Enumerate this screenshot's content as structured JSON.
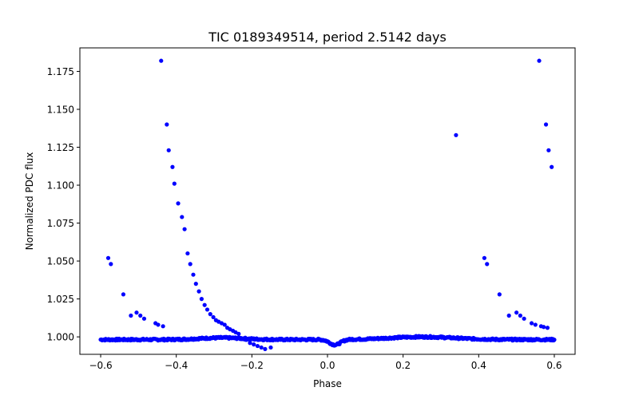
{
  "chart_data": {
    "type": "scatter",
    "title": "TIC 0189349514, period 2.5142 days",
    "xlabel": "Phase",
    "ylabel": "Normalized PDC flux",
    "xlim": [
      -0.655,
      0.655
    ],
    "ylim": [
      0.9885,
      1.1905
    ],
    "xticks": [
      -0.6,
      -0.4,
      -0.2,
      0.0,
      0.2,
      0.4,
      0.6
    ],
    "xtick_labels": [
      "−0.6",
      "−0.4",
      "−0.2",
      "0.0",
      "0.2",
      "0.4",
      "0.6"
    ],
    "yticks": [
      1.0,
      1.025,
      1.05,
      1.075,
      1.1,
      1.125,
      1.15,
      1.175
    ],
    "ytick_labels": [
      "1.000",
      "1.025",
      "1.050",
      "1.075",
      "1.100",
      "1.125",
      "1.150",
      "1.175"
    ],
    "grid": false,
    "marker_color": "#0000ff",
    "series": [
      {
        "points": [
          [
            -0.58,
            1.052
          ],
          [
            -0.573,
            1.048
          ],
          [
            -0.54,
            1.028
          ],
          [
            -0.52,
            1.014
          ],
          [
            -0.505,
            1.016
          ],
          [
            -0.495,
            1.014
          ],
          [
            -0.485,
            1.012
          ],
          [
            -0.455,
            1.009
          ],
          [
            -0.448,
            1.008
          ],
          [
            -0.44,
            1.182
          ],
          [
            -0.435,
            1.007
          ],
          [
            -0.425,
            1.14
          ],
          [
            -0.42,
            1.123
          ],
          [
            -0.41,
            1.112
          ],
          [
            -0.405,
            1.101
          ],
          [
            -0.395,
            1.088
          ],
          [
            -0.385,
            1.079
          ],
          [
            -0.378,
            1.071
          ],
          [
            -0.37,
            1.055
          ],
          [
            -0.363,
            1.048
          ],
          [
            -0.355,
            1.041
          ],
          [
            -0.348,
            1.035
          ],
          [
            -0.34,
            1.03
          ],
          [
            -0.333,
            1.025
          ],
          [
            -0.325,
            1.021
          ],
          [
            -0.318,
            1.018
          ],
          [
            -0.31,
            1.015
          ],
          [
            -0.302,
            1.013
          ],
          [
            -0.295,
            1.011
          ],
          [
            -0.288,
            1.01
          ],
          [
            -0.28,
            1.009
          ],
          [
            -0.272,
            1.008
          ],
          [
            -0.265,
            1.006
          ],
          [
            -0.258,
            1.005
          ],
          [
            -0.25,
            1.004
          ],
          [
            -0.243,
            1.003
          ],
          [
            -0.235,
            1.002
          ],
          [
            -0.215,
            0.998
          ],
          [
            -0.205,
            0.996
          ],
          [
            -0.195,
            0.995
          ],
          [
            -0.185,
            0.994
          ],
          [
            -0.175,
            0.993
          ],
          [
            -0.165,
            0.992
          ],
          [
            -0.15,
            0.993
          ],
          [
            0.34,
            1.133
          ],
          [
            0.415,
            1.052
          ],
          [
            0.422,
            1.048
          ],
          [
            0.455,
            1.028
          ],
          [
            0.48,
            1.014
          ],
          [
            0.5,
            1.016
          ],
          [
            0.51,
            1.014
          ],
          [
            0.52,
            1.012
          ],
          [
            0.54,
            1.009
          ],
          [
            0.55,
            1.008
          ],
          [
            0.56,
            1.182
          ],
          [
            0.565,
            1.007
          ],
          [
            0.572,
            1.0065
          ],
          [
            0.578,
            1.14
          ],
          [
            0.582,
            1.006
          ],
          [
            0.585,
            1.123
          ],
          [
            0.593,
            1.112
          ]
        ]
      }
    ]
  }
}
